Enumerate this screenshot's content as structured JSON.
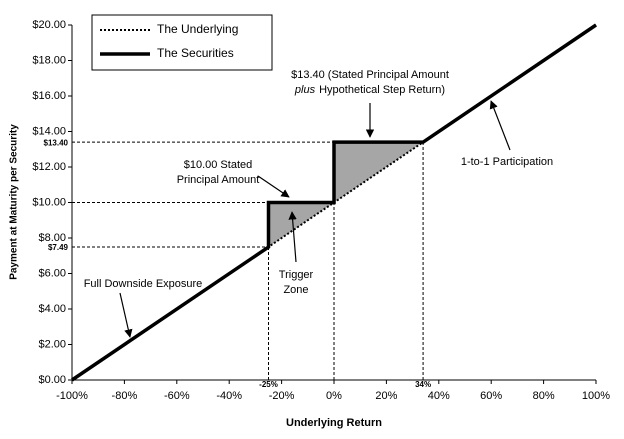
{
  "chart_data": {
    "type": "line",
    "xlabel": "Underlying Return",
    "ylabel": "Payment at Maturity per Security",
    "xlim": [
      -100,
      100
    ],
    "ylim": [
      0,
      20
    ],
    "xticks": [
      {
        "value": -100,
        "label": "-100%"
      },
      {
        "value": -80,
        "label": "-80%"
      },
      {
        "value": -60,
        "label": "-60%"
      },
      {
        "value": -40,
        "label": "-40%"
      },
      {
        "value": -20,
        "label": "-20%"
      },
      {
        "value": 0,
        "label": "0%"
      },
      {
        "value": 20,
        "label": "20%"
      },
      {
        "value": 40,
        "label": "40%"
      },
      {
        "value": 60,
        "label": "60%"
      },
      {
        "value": 80,
        "label": "80%"
      },
      {
        "value": 100,
        "label": "100%"
      }
    ],
    "yticks": [
      {
        "value": 0,
        "label": "$0.00"
      },
      {
        "value": 2,
        "label": "$2.00"
      },
      {
        "value": 4,
        "label": "$4.00"
      },
      {
        "value": 6,
        "label": "$6.00"
      },
      {
        "value": 8,
        "label": "$8.00"
      },
      {
        "value": 10,
        "label": "$10.00"
      },
      {
        "value": 12,
        "label": "$12.00"
      },
      {
        "value": 14,
        "label": "$14.00"
      },
      {
        "value": 16,
        "label": "$16.00"
      },
      {
        "value": 18,
        "label": "$18.00"
      },
      {
        "value": 20,
        "label": "$20.00"
      }
    ],
    "x_markers": [
      {
        "value": -25,
        "label": "-25%"
      },
      {
        "value": 0
      },
      {
        "value": 34,
        "label": "34%"
      }
    ],
    "y_markers": [
      {
        "value": 13.4,
        "label": "$13.40"
      },
      {
        "value": 10
      },
      {
        "value": 7.49,
        "label": "$7.49"
      }
    ],
    "series": [
      {
        "name": "The Underlying",
        "color": "#000000",
        "style": "dotted",
        "x": [
          -100,
          100
        ],
        "values": [
          0,
          20
        ]
      },
      {
        "name": "The Securities",
        "color": "#000000",
        "style": "solid",
        "x": [
          -100,
          -25,
          -25,
          0,
          0,
          34,
          100
        ],
        "values": [
          0,
          7.49,
          10,
          10,
          13.4,
          13.4,
          20
        ]
      }
    ],
    "shade_color": "#a6a6a6",
    "annotations": [
      {
        "text": [
          "$13.40 (Stated Principal Amount",
          "plus",
          "Hypothetical Step Return)"
        ]
      },
      {
        "text": [
          "$10.00 Stated",
          "Principal Amount"
        ]
      },
      {
        "text": [
          "1-to-1 Participation"
        ]
      },
      {
        "text": [
          "Trigger",
          "Zone"
        ]
      },
      {
        "text": [
          "Full Downside Exposure"
        ]
      }
    ]
  }
}
